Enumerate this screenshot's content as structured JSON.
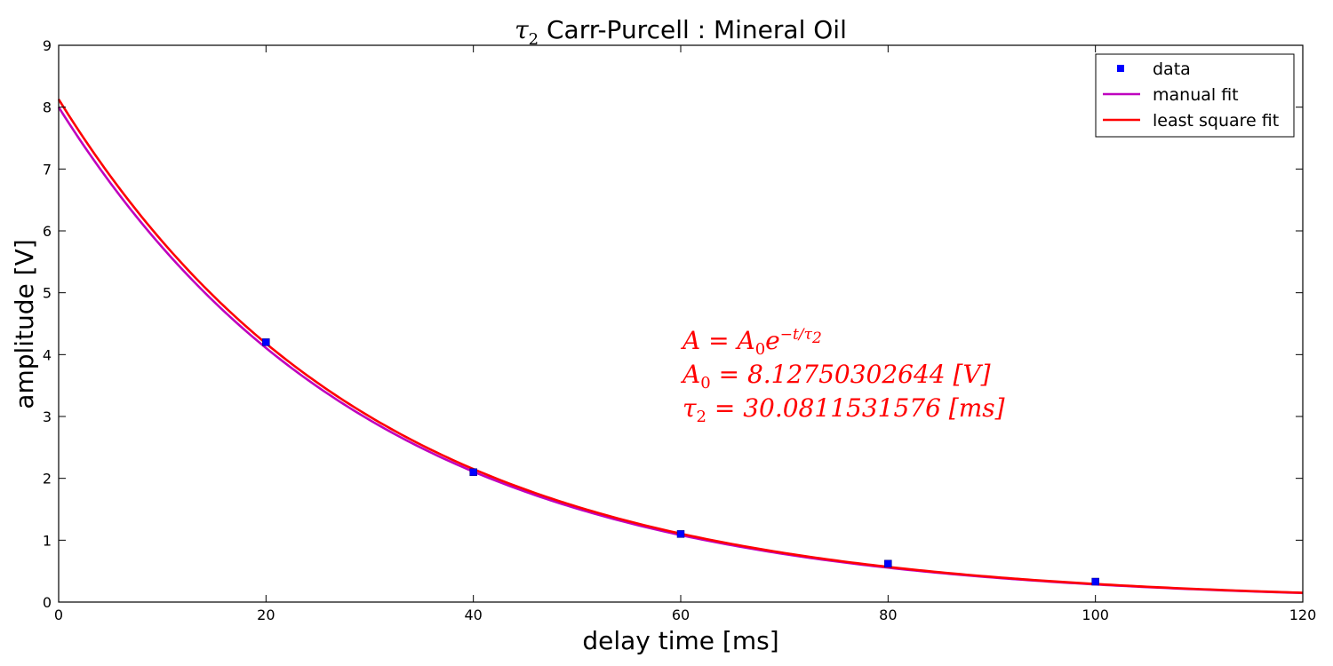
{
  "chart_data": {
    "type": "scatter",
    "title": {
      "symbol": "τ",
      "symbol_sub": "2",
      "text": " Carr-Purcell : Mineral Oil"
    },
    "xlabel": "delay time [ms]",
    "ylabel": "amplitude [V]",
    "xlim": [
      0,
      120
    ],
    "ylim": [
      0,
      9
    ],
    "xticks": [
      "0",
      "20",
      "40",
      "60",
      "80",
      "100",
      "120"
    ],
    "yticks": [
      "0",
      "1",
      "2",
      "3",
      "4",
      "5",
      "6",
      "7",
      "8",
      "9"
    ],
    "grid": false,
    "legend_position": "top-right",
    "series": [
      {
        "name": "data",
        "kind": "scatter",
        "color": "#0000ff",
        "x": [
          20,
          40,
          60,
          80,
          100
        ],
        "y": [
          4.2,
          2.1,
          1.1,
          0.62,
          0.33
        ]
      },
      {
        "name": "manual fit",
        "kind": "line",
        "color": "#bf00bf",
        "A0": 8.0,
        "tau2": 30.0
      },
      {
        "name": "least square fit",
        "kind": "line",
        "color": "#ff0000",
        "A0": 8.12750302644,
        "tau2": 30.0811531576
      }
    ],
    "annotation": {
      "color": "#ff0000",
      "line1": {
        "lhs": "A = A",
        "lhs_sub": "0",
        "base": "e",
        "exp": "−t/τ",
        "exp_sub": "2"
      },
      "line2": {
        "sym": "A",
        "sub": "0",
        "rest": " = 8.12750302644 [V]"
      },
      "line3": {
        "sym": "τ",
        "sub": "2",
        "rest": " = 30.0811531576 [ms]"
      }
    }
  }
}
